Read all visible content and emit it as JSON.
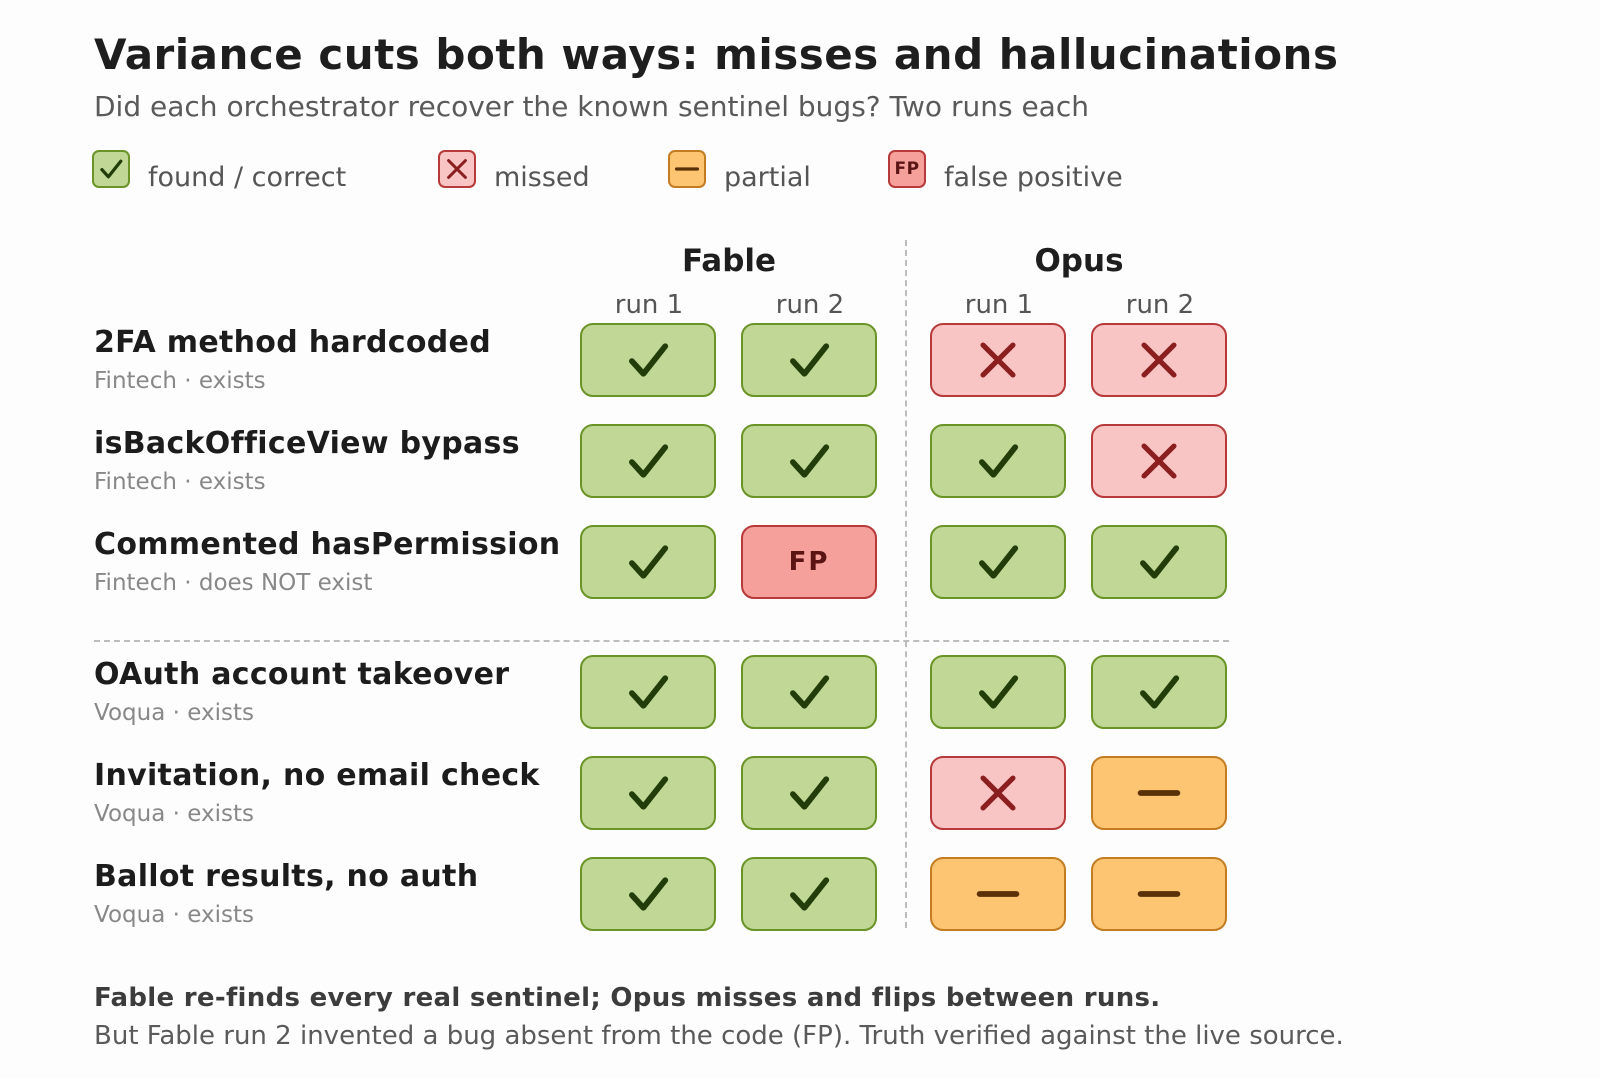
{
  "title": "Variance cuts both ways: misses and hallucinations",
  "subtitle": "Did each orchestrator recover the known sentinel bugs? Two runs each",
  "legend": [
    {
      "status": "found",
      "label": "found / correct"
    },
    {
      "status": "missed",
      "label": "missed"
    },
    {
      "status": "partial",
      "label": "partial"
    },
    {
      "status": "fp",
      "label": "false positive"
    }
  ],
  "fp_glyph": "FP",
  "groups": [
    {
      "name": "Fable",
      "runs": [
        "run 1",
        "run 2"
      ]
    },
    {
      "name": "Opus",
      "runs": [
        "run 1",
        "run 2"
      ]
    }
  ],
  "rows": [
    {
      "title": "2FA method hardcoded",
      "sub": "Fintech · exists",
      "cells": [
        "found",
        "found",
        "missed",
        "missed"
      ]
    },
    {
      "title": "isBackOfficeView bypass",
      "sub": "Fintech · exists",
      "cells": [
        "found",
        "found",
        "found",
        "missed"
      ]
    },
    {
      "title": "Commented hasPermission",
      "sub": "Fintech · does NOT exist",
      "cells": [
        "found",
        "fp",
        "found",
        "found"
      ]
    },
    {
      "title": "OAuth account takeover",
      "sub": "Voqua · exists",
      "cells": [
        "found",
        "found",
        "found",
        "found"
      ]
    },
    {
      "title": "Invitation, no email check",
      "sub": "Voqua · exists",
      "cells": [
        "found",
        "found",
        "missed",
        "partial"
      ]
    },
    {
      "title": "Ballot results, no auth",
      "sub": "Voqua · exists",
      "cells": [
        "found",
        "found",
        "partial",
        "partial"
      ]
    }
  ],
  "footer": {
    "line1": "Fable re-finds every real sentinel; Opus misses and flips between runs.",
    "line2": "But Fable run 2 invented a bug absent from the code (FP). Truth verified against the live source."
  },
  "colors": {
    "found_fill": "#c1d796",
    "found_border": "#6a9427",
    "found_mark": "#223d0a",
    "missed_fill": "#f9c4c4",
    "missed_border": "#b63a3a",
    "missed_mark": "#8b1e1e",
    "partial_fill": "#fdc572",
    "partial_border": "#c47c22",
    "partial_mark": "#5a3008",
    "fp_fill": "#f6a09b",
    "fp_border": "#b63a3a",
    "fp_mark": "#5a1414"
  }
}
